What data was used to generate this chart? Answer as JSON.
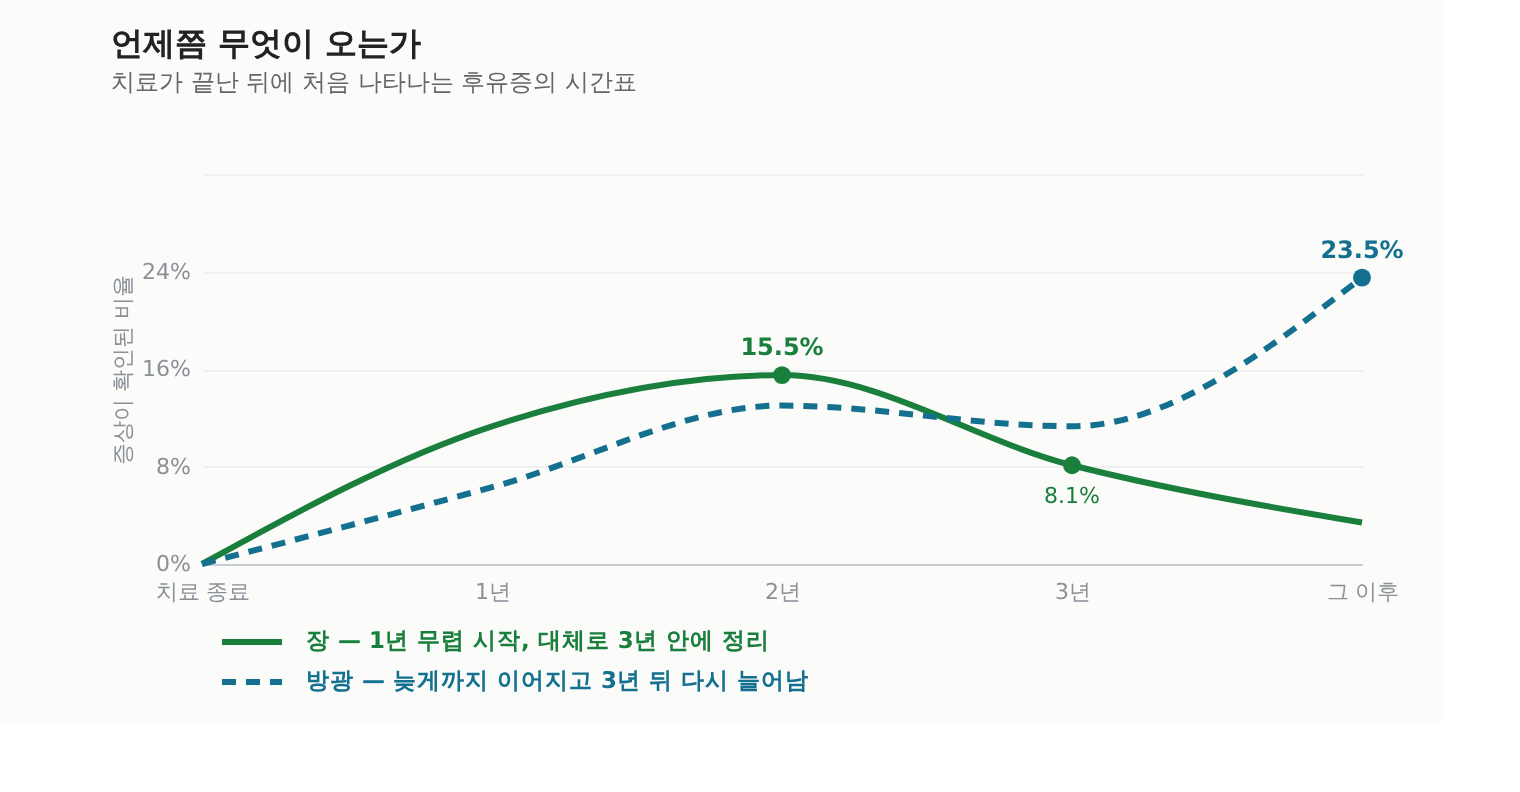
{
  "chart_data": {
    "type": "line",
    "title": "언제쯤 무엇이 오는가",
    "subtitle": "치료가 끝난 뒤에 처음 나타나는 후유증의 시간표",
    "ylabel": "증상이 확인된 비율",
    "categories": [
      "치료 종료",
      "1년",
      "2년",
      "3년",
      "그 이후"
    ],
    "series": [
      {
        "name": "장 — 1년 무렵 시작, 대체로 3년 안에 정리",
        "color": "#1a7f3c",
        "line_style": "solid",
        "values": [
          0,
          11.3,
          15.5,
          8.1,
          3.4
        ],
        "value_labels": [
          null,
          null,
          "15.5%",
          "8.1%",
          null
        ]
      },
      {
        "name": "방광 — 늦게까지 이어지고 3년 뒤 다시 늘어남",
        "color": "#13708f",
        "line_style": "dashed",
        "values": [
          0,
          6.3,
          13.0,
          11.3,
          23.5
        ],
        "value_labels": [
          null,
          null,
          null,
          null,
          "23.5%"
        ]
      }
    ],
    "ylim": [
      0,
      32
    ],
    "yticks": [
      {
        "value": 0,
        "label": "0%"
      },
      {
        "value": 8,
        "label": "8%"
      },
      {
        "value": 16,
        "label": "16%"
      },
      {
        "value": 24,
        "label": "24%"
      },
      {
        "value": 32,
        "label": null
      }
    ],
    "grid": "y",
    "legend": "bottom left"
  }
}
